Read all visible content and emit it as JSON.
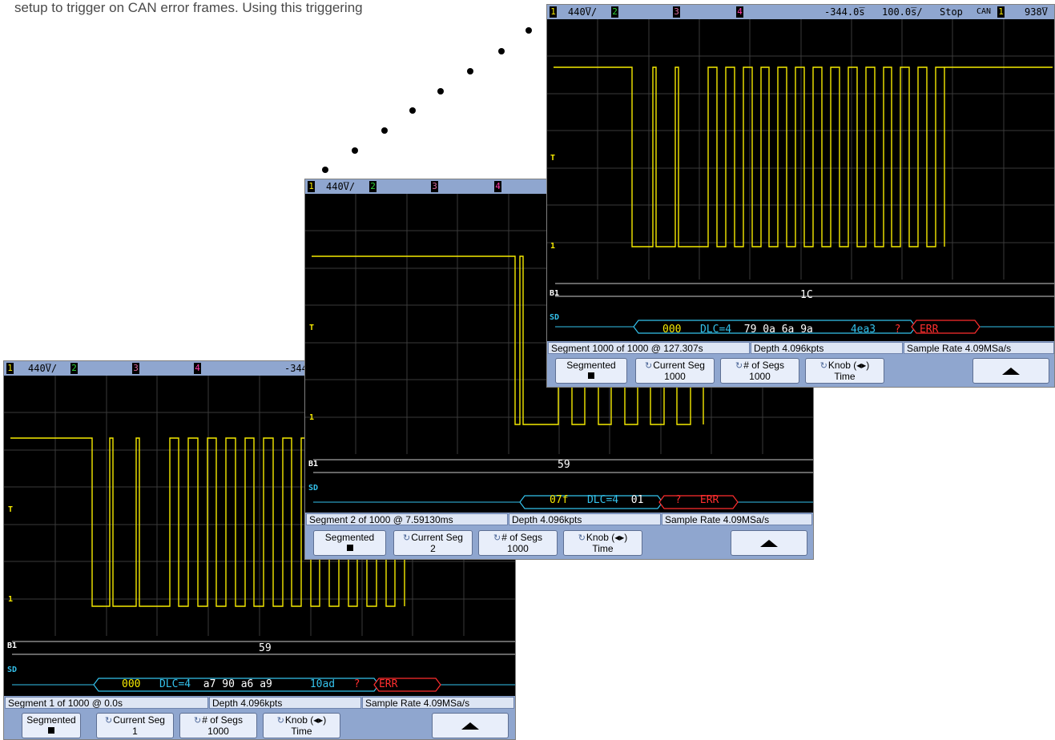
{
  "intro_text": "setup to trigger on CAN error frames. Using this triggering",
  "colors": {
    "background": "#ffffff",
    "screen": "#000000",
    "grid": "#3a3a3a",
    "trace": "#f6ea00",
    "decode_id": "#f6ea00",
    "decode_dlc": "#34c2ec",
    "decode_error": "#ff2e2e",
    "bar": "#8fa6cf"
  },
  "scopes": [
    {
      "ch1": "1",
      "ch1_scale": "440̅V/",
      "ch2": "2",
      "ch3": "3",
      "ch4": "4",
      "delay": "-344",
      "side": {
        "t": "T",
        "ch1_marker": "1",
        "bus": "B1",
        "serial": "SD"
      },
      "bus_value": "59",
      "decode": {
        "id": "000",
        "dlc": "DLC=4",
        "data": "a7 90  a6  a9",
        "crc": "10ad",
        "q": "?",
        "err": "ERR"
      },
      "status": {
        "segment": "Segment   1 of 1000 @ 0.0s",
        "depth": "Depth 4.096kpts",
        "rate": "Sample Rate 4.09MSa/s"
      },
      "softkeys": {
        "segmented": "Segmented",
        "current_seg": "Current Seg",
        "current_seg_val": "1",
        "num_segs": "# of Segs",
        "num_segs_val": "1000",
        "knob": "Knob (◂▸)",
        "knob_val": "Time"
      }
    },
    {
      "ch1": "1",
      "ch1_scale": "440̅V/",
      "ch2": "2",
      "ch3": "3",
      "ch4": "4",
      "side": {
        "t": "T",
        "ch1_marker": "1",
        "bus": "B1",
        "serial": "SD"
      },
      "bus_value": "59",
      "decode": {
        "id": "07f",
        "dlc": "DLC=4",
        "data": "01",
        "q": "?",
        "err": "ERR"
      },
      "status": {
        "segment": "Segment   2 of 1000 @ 7.59130ms",
        "depth": "Depth 4.096kpts",
        "rate": "Sample Rate 4.09MSa/s"
      },
      "softkeys": {
        "segmented": "Segmented",
        "current_seg": "Current Seg",
        "current_seg_val": "2",
        "num_segs": "# of Segs",
        "num_segs_val": "1000",
        "knob": "Knob (◂▸)",
        "knob_val": "Time"
      }
    },
    {
      "ch1": "1",
      "ch1_scale": "440̅V/",
      "ch2": "2",
      "ch3": "3",
      "ch4": "4",
      "delay": "-344.0̅s",
      "timebase": "100.0̅s/",
      "run_state": "Stop",
      "trigger_type": "CAN",
      "trigger_ch": "1",
      "trigger_level": "938̅V",
      "side": {
        "t": "T",
        "ch1_marker": "1",
        "bus": "B1",
        "serial": "SD"
      },
      "bus_value": "1C",
      "decode": {
        "id": "000",
        "dlc": "DLC=4",
        "data": "79 0a  6a  9a",
        "crc": "4ea3",
        "q": "?",
        "err": "ERR"
      },
      "status": {
        "segment": "Segment 1000 of 1000 @ 127.307s",
        "depth": "Depth 4.096kpts",
        "rate": "Sample Rate 4.09MSa/s"
      },
      "softkeys": {
        "segmented": "Segmented",
        "current_seg": "Current Seg",
        "current_seg_val": "1000",
        "num_segs": "# of Segs",
        "num_segs_val": "1000",
        "knob": "Knob (◂▸)",
        "knob_val": "Time"
      }
    }
  ]
}
